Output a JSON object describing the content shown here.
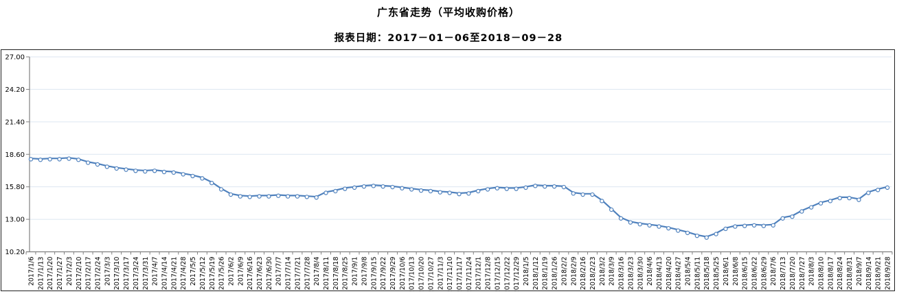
{
  "title": "广东省走势（平均收购价格）",
  "subtitle": "报表日期：2017－01－06至2018－09－28",
  "chart_data": {
    "type": "line",
    "title": "广东省走势（平均收购价格）",
    "subtitle": "报表日期：2017－01－06至2018－09－28",
    "series_name": "平均收购价格",
    "ylim": [
      10.2,
      27.0
    ],
    "yticks": [
      10.2,
      13.0,
      15.8,
      18.6,
      21.4,
      24.2,
      27.0
    ],
    "grid": true,
    "legend_position": "none",
    "line_color": "#4f81bd",
    "marker": "open-circle",
    "marker_fill": "#ffffff",
    "gridline_color": "#dce6f1",
    "axis_color": "#808080",
    "border_color": "#1f1f1f",
    "label_color": "#000000",
    "x": [
      "2017/1/6",
      "2017/1/13",
      "2017/1/20",
      "2017/1/27",
      "2017/2/3",
      "2017/2/10",
      "2017/2/17",
      "2017/2/24",
      "2017/3/3",
      "2017/3/10",
      "2017/3/17",
      "2017/3/24",
      "2017/3/31",
      "2017/4/7",
      "2017/4/14",
      "2017/4/21",
      "2017/4/28",
      "2017/5/5",
      "2017/5/12",
      "2017/5/19",
      "2017/5/26",
      "2017/6/2",
      "2017/6/9",
      "2017/6/16",
      "2017/6/23",
      "2017/6/30",
      "2017/7/7",
      "2017/7/14",
      "2017/7/21",
      "2017/7/28",
      "2017/8/4",
      "2017/8/11",
      "2017/8/18",
      "2017/8/25",
      "2017/9/1",
      "2017/9/8",
      "2017/9/15",
      "2017/9/22",
      "2017/9/29",
      "2017/10/6",
      "2017/10/13",
      "2017/10/20",
      "2017/10/27",
      "2017/11/3",
      "2017/11/10",
      "2017/11/17",
      "2017/11/24",
      "2017/12/1",
      "2017/12/8",
      "2017/12/15",
      "2017/12/22",
      "2017/12/29",
      "2018/1/5",
      "2018/1/12",
      "2018/1/19",
      "2018/1/26",
      "2018/2/2",
      "2018/2/9",
      "2018/2/16",
      "2018/2/23",
      "2018/3/2",
      "2018/3/9",
      "2018/3/16",
      "2018/3/23",
      "2018/3/30",
      "2018/4/6",
      "2018/4/13",
      "2018/4/20",
      "2018/4/27",
      "2018/5/4",
      "2018/5/11",
      "2018/5/18",
      "2018/5/25",
      "2018/6/1",
      "2018/6/8",
      "2018/6/15",
      "2018/6/22",
      "2018/6/29",
      "2018/7/6",
      "2018/7/13",
      "2018/7/20",
      "2018/7/27",
      "2018/8/3",
      "2018/8/10",
      "2018/8/17",
      "2018/8/24",
      "2018/8/31",
      "2018/9/7",
      "2018/9/14",
      "2018/9/21",
      "2018/9/28"
    ],
    "values": [
      18.25,
      18.2,
      18.25,
      18.25,
      18.3,
      18.2,
      17.95,
      17.8,
      17.6,
      17.45,
      17.35,
      17.25,
      17.2,
      17.25,
      17.15,
      17.1,
      16.95,
      16.8,
      16.6,
      16.2,
      15.65,
      15.2,
      15.05,
      15.0,
      15.05,
      15.05,
      15.1,
      15.05,
      15.05,
      15.0,
      14.95,
      15.35,
      15.5,
      15.7,
      15.8,
      15.9,
      15.95,
      15.9,
      15.85,
      15.75,
      15.65,
      15.55,
      15.5,
      15.4,
      15.35,
      15.25,
      15.3,
      15.5,
      15.65,
      15.75,
      15.7,
      15.7,
      15.8,
      15.95,
      15.9,
      15.9,
      15.85,
      15.3,
      15.2,
      15.2,
      14.65,
      13.9,
      13.15,
      12.8,
      12.65,
      12.55,
      12.45,
      12.3,
      12.1,
      11.9,
      11.65,
      11.5,
      11.8,
      12.25,
      12.45,
      12.5,
      12.55,
      12.5,
      12.55,
      13.15,
      13.3,
      13.75,
      14.1,
      14.45,
      14.65,
      14.9,
      14.9,
      14.75,
      15.35,
      15.6,
      15.8
    ]
  }
}
